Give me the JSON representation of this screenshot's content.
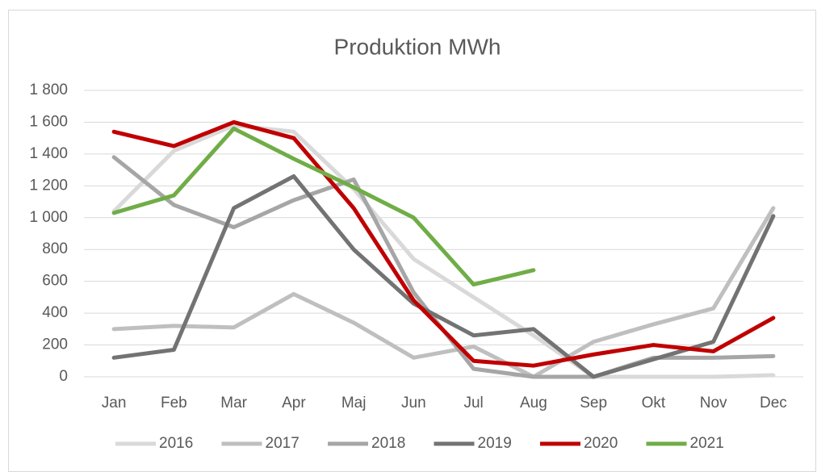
{
  "chart_data": {
    "type": "line",
    "title": "Produktion MWh",
    "categories": [
      "Jan",
      "Feb",
      "Mar",
      "Apr",
      "Maj",
      "Jun",
      "Jul",
      "Aug",
      "Sep",
      "Okt",
      "Nov",
      "Dec"
    ],
    "series": [
      {
        "name": "2016",
        "color": "#d9d9d9",
        "values": [
          1040,
          1420,
          1580,
          1540,
          1180,
          740,
          500,
          260,
          0,
          0,
          0,
          10
        ]
      },
      {
        "name": "2017",
        "color": "#bfbfbf",
        "values": [
          300,
          320,
          310,
          520,
          340,
          120,
          190,
          0,
          220,
          330,
          430,
          1060
        ]
      },
      {
        "name": "2018",
        "color": "#a6a6a6",
        "values": [
          1380,
          1080,
          940,
          1110,
          1240,
          530,
          50,
          0,
          0,
          120,
          120,
          130
        ]
      },
      {
        "name": "2019",
        "color": "#737373",
        "values": [
          120,
          170,
          1060,
          1260,
          800,
          460,
          260,
          300,
          0,
          110,
          220,
          1010
        ]
      },
      {
        "name": "2020",
        "color": "#c00000",
        "values": [
          1540,
          1450,
          1600,
          1500,
          1060,
          480,
          100,
          70,
          140,
          200,
          160,
          370
        ]
      },
      {
        "name": "2021",
        "color": "#70ad47",
        "values": [
          1030,
          1140,
          1560,
          1370,
          1190,
          1000,
          580,
          670,
          null,
          null,
          null,
          null
        ]
      }
    ],
    "ylim": [
      0,
      1800
    ],
    "yticks": [
      0,
      200,
      400,
      600,
      800,
      {
        "value": 1000,
        "label": "1 000"
      },
      {
        "value": 1200,
        "label": "1 200"
      },
      {
        "value": 1400,
        "label": "1 400"
      },
      {
        "value": 1600,
        "label": "1 600"
      },
      {
        "value": 1800,
        "label": "1 800"
      }
    ],
    "grid": true,
    "legend": "bottom"
  }
}
